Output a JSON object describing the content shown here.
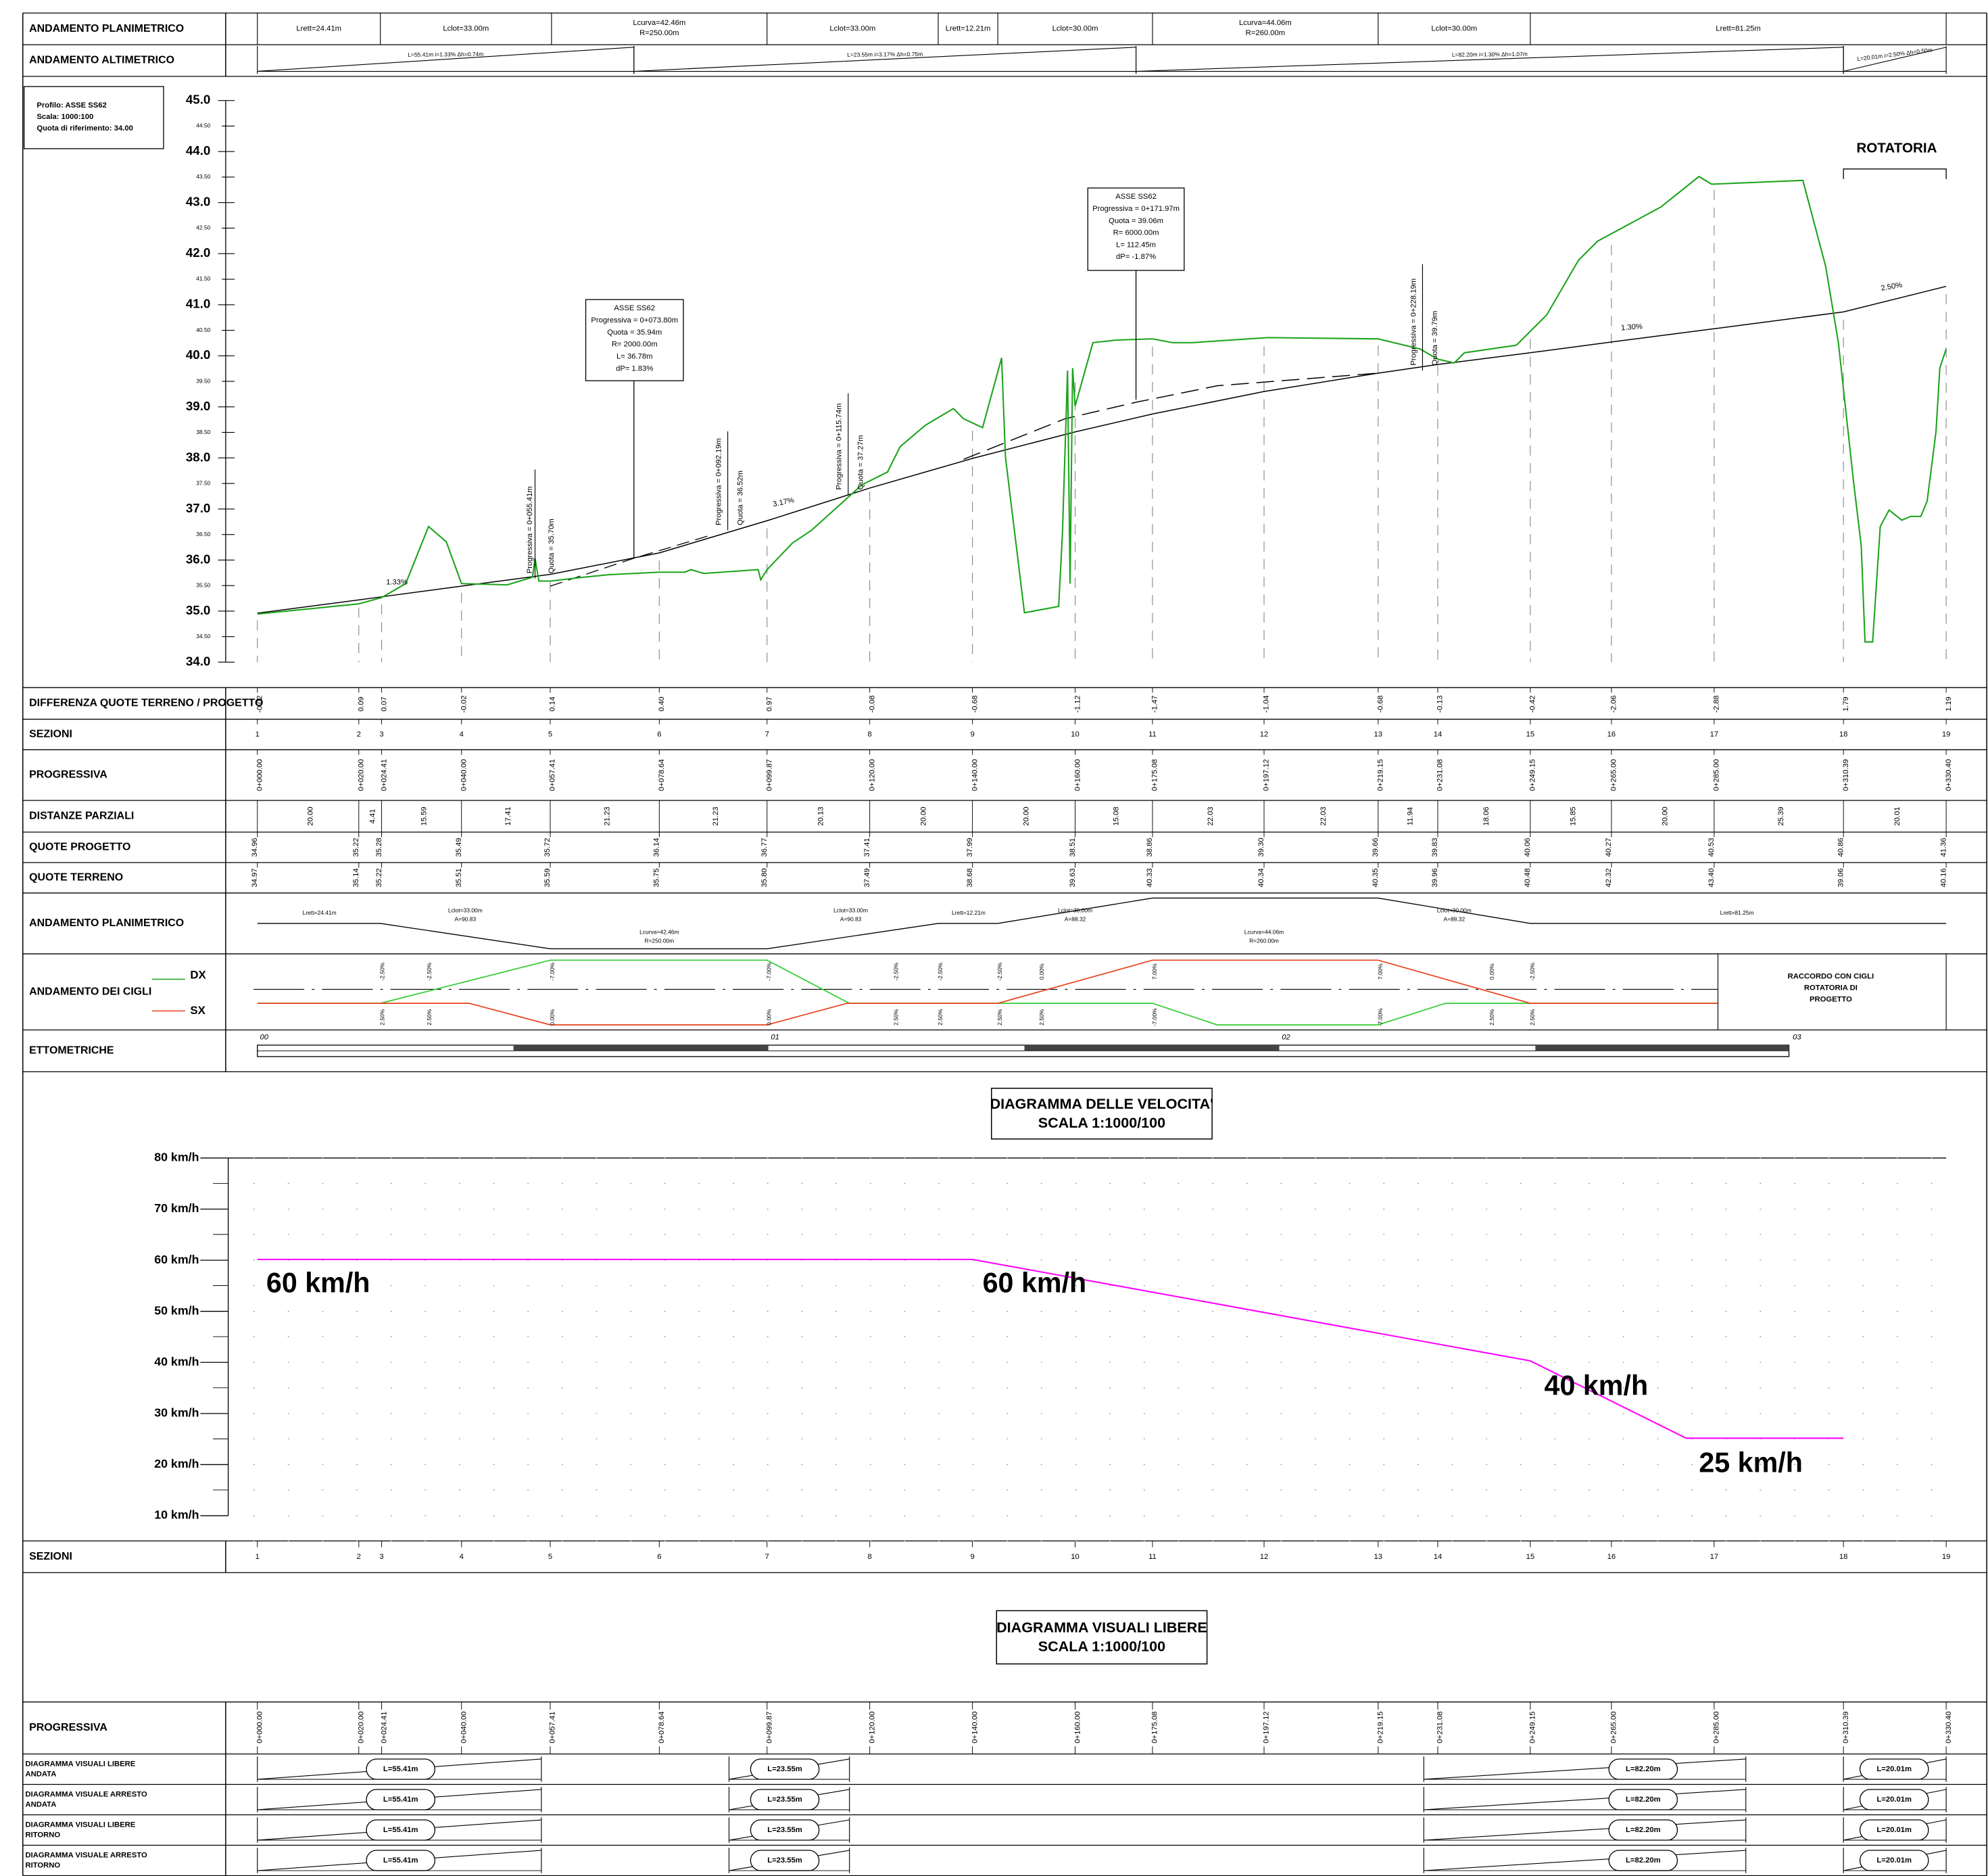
{
  "rows": {
    "plan_top": "ANDAMENTO PLANIMETRICO",
    "alt": "ANDAMENTO ALTIMETRICO",
    "diff": "DIFFERENZA QUOTE TERRENO / PROGETTO",
    "sez": "SEZIONI",
    "prog": "PROGRESSIVA",
    "dist": "DISTANZE PARZIALI",
    "qp": "QUOTE PROGETTO",
    "qt": "QUOTE TERRENO",
    "plan2": "ANDAMENTO PLANIMETRICO",
    "cigli": "ANDAMENTO DEI CIGLI",
    "etto": "ETTOMETRICHE",
    "sez2": "SEZIONI",
    "prog2": "PROGRESSIVA"
  },
  "plan_top": [
    [
      "Lrett=24.41m"
    ],
    [
      "Lclot=33.00m"
    ],
    [
      "Lcurva=42.46m",
      "R=250.00m"
    ],
    [
      "Lclot=33.00m"
    ],
    [
      "Lrett=12.21m"
    ],
    [
      "Lclot=30.00m"
    ],
    [
      "Lcurva=44.06m",
      "R=260.00m"
    ],
    [
      "Lclot=30.00m"
    ],
    [
      "Lrett=81.25m"
    ]
  ],
  "alt": [
    "L=55.41m i=1.33% Δh=0.74m",
    "L=23.55m i=3.17% Δh=0.75m",
    "L=82.20m i=1.30% Δh=1.07m",
    "L=20.01m i=2.50% Δh=0.50m"
  ],
  "profile": {
    "legend": [
      "Profilo: ASSE SS62",
      "Scala: 1000:100",
      "Quota di riferimento: 34.00"
    ],
    "yticks": [
      "45.0",
      "44.50",
      "44.0",
      "43.50",
      "43.0",
      "42.50",
      "42.0",
      "41.50",
      "41.0",
      "40.50",
      "40.0",
      "39.50",
      "39.0",
      "38.50",
      "38.0",
      "37.50",
      "37.0",
      "36.50",
      "36.0",
      "35.50",
      "35.0",
      "34.50",
      "34.0"
    ],
    "notes": [
      [
        "ASSE SS62",
        "Progressiva = 0+073.80m",
        "Quota = 35.94m",
        "R= 2000.00m",
        "L= 36.78m",
        "dP= 1.83%"
      ],
      [
        "ASSE SS62",
        "Progressiva = 0+171.97m",
        "Quota = 39.06m",
        "R= 6000.00m",
        "L= 112.45m",
        "dP= -1.87%"
      ]
    ],
    "vlabels": [
      [
        "Progressiva = 0+055.41m",
        "Quota = 35.70m"
      ],
      [
        "Progressiva = 0+092.19m",
        "Quota = 36.52m"
      ],
      [
        "Progressiva = 0+115.74m",
        "Quota = 37.27m"
      ],
      [
        "Progressiva = 0+228.19m",
        "Quota = 39.79m"
      ]
    ],
    "slopes": [
      "1.33%",
      "3.17%",
      "1.30%",
      "2.50%"
    ],
    "rotatoria": "ROTATORIA"
  },
  "sections": [
    "1",
    "2",
    "3",
    "4",
    "5",
    "6",
    "7",
    "8",
    "9",
    "10",
    "11",
    "12",
    "13",
    "14",
    "15",
    "16",
    "17",
    "18",
    "19"
  ],
  "diff": [
    "-0.02",
    "0.09",
    "0.07",
    "-0.02",
    "0.14",
    "0.40",
    "0.97",
    "-0.08",
    "-0.68",
    "-1.12",
    "-1.47",
    "-1.04",
    "-0.68",
    "-0.13",
    "-0.42",
    "-2.06",
    "-2.88",
    "1.79",
    "1.19"
  ],
  "progressive": [
    "0+000.00",
    "0+020.00",
    "0+024.41",
    "0+040.00",
    "0+057.41",
    "0+078.64",
    "0+099.87",
    "0+120.00",
    "0+140.00",
    "0+160.00",
    "0+175.08",
    "0+197.12",
    "0+219.15",
    "0+231.08",
    "0+249.15",
    "0+265.00",
    "0+285.00",
    "0+310.39",
    "0+330.40"
  ],
  "distances": [
    "20.00",
    "4.41",
    "15.59",
    "17.41",
    "21.23",
    "21.23",
    "20.13",
    "20.00",
    "20.00",
    "15.08",
    "22.03",
    "22.03",
    "11.94",
    "18.06",
    "15.85",
    "20.00",
    "25.39",
    "20.01"
  ],
  "quote_progetto": [
    "34.96",
    "35.22",
    "35.28",
    "35.49",
    "35.72",
    "36.14",
    "36.77",
    "37.41",
    "37.99",
    "38.51",
    "38.86",
    "39.30",
    "39.66",
    "39.83",
    "40.06",
    "40.27",
    "40.53",
    "40.86",
    "41.36"
  ],
  "quote_terreno": [
    "34.97",
    "35.14",
    "35.22",
    "35.51",
    "35.59",
    "35.75",
    "35.80",
    "37.49",
    "38.68",
    "39.63",
    "40.33",
    "40.34",
    "40.35",
    "39.96",
    "40.48",
    "42.32",
    "43.40",
    "39.06",
    "40.16"
  ],
  "plan2": [
    [
      "Lrett=24.41m"
    ],
    [
      "Lclot=33.00m",
      "A=90.83"
    ],
    [
      "Lcurva=42.46m",
      "R=250.00m"
    ],
    [
      "Lclot=33.00m",
      "A=90.83"
    ],
    [
      "Lrett=12.21m"
    ],
    [
      "Lclot=30.00m",
      "A=88.32"
    ],
    [
      "Lcurva=44.06m",
      "R=260.00m"
    ],
    [
      "Lclot=30.00m",
      "A=88.32"
    ],
    [
      "Lrett=81.25m"
    ]
  ],
  "cigli": {
    "dx": "DX",
    "sx": "SX",
    "top": [
      "-2.50%",
      "-2.50%",
      "-7.00%",
      "-7.00%",
      "-2.50%",
      "-2.50%",
      "-2.50%",
      "0.00%",
      "7.00%",
      "7.00%",
      "0.00%",
      "-2.50%"
    ],
    "bottom": [
      "2.50%",
      "2.50%",
      "0.00%",
      "0.00%",
      "2.50%",
      "2.50%",
      "2.50%",
      "2.50%",
      "-7.00%",
      "-7.00%",
      "2.50%",
      "2.50%"
    ],
    "box": [
      "RACCORDO CON CIGLI",
      "ROTATORIA DI",
      "PROGETTO"
    ]
  },
  "etto": [
    "00",
    "01",
    "02",
    "03"
  ],
  "speed": {
    "title": [
      "DIAGRAMMA DELLE VELOCITA'",
      "SCALA 1:1000/100"
    ],
    "axis": [
      "80 km/h",
      "70 km/h",
      "60 km/h",
      "50 km/h",
      "40 km/h",
      "30 km/h",
      "20 km/h",
      "10 km/h"
    ],
    "labels": [
      "60 km/h",
      "60 km/h",
      "40 km/h",
      "25 km/h"
    ]
  },
  "visuals": {
    "title": [
      "DIAGRAMMA VISUALI LIBERE",
      "SCALA 1:1000/100"
    ],
    "rows": [
      [
        "DIAGRAMMA VISUALI LIBERE",
        "ANDATA"
      ],
      [
        "DIAGRAMMA VISUALE ARRESTO",
        "ANDATA"
      ],
      [
        "DIAGRAMMA VISUALI LIBERE",
        "RITORNO"
      ],
      [
        "DIAGRAMMA VISUALE ARRESTO",
        "RITORNO"
      ]
    ],
    "lengths": [
      "L=55.41m",
      "L=23.55m",
      "L=82.20m",
      "L=20.01m"
    ]
  }
}
